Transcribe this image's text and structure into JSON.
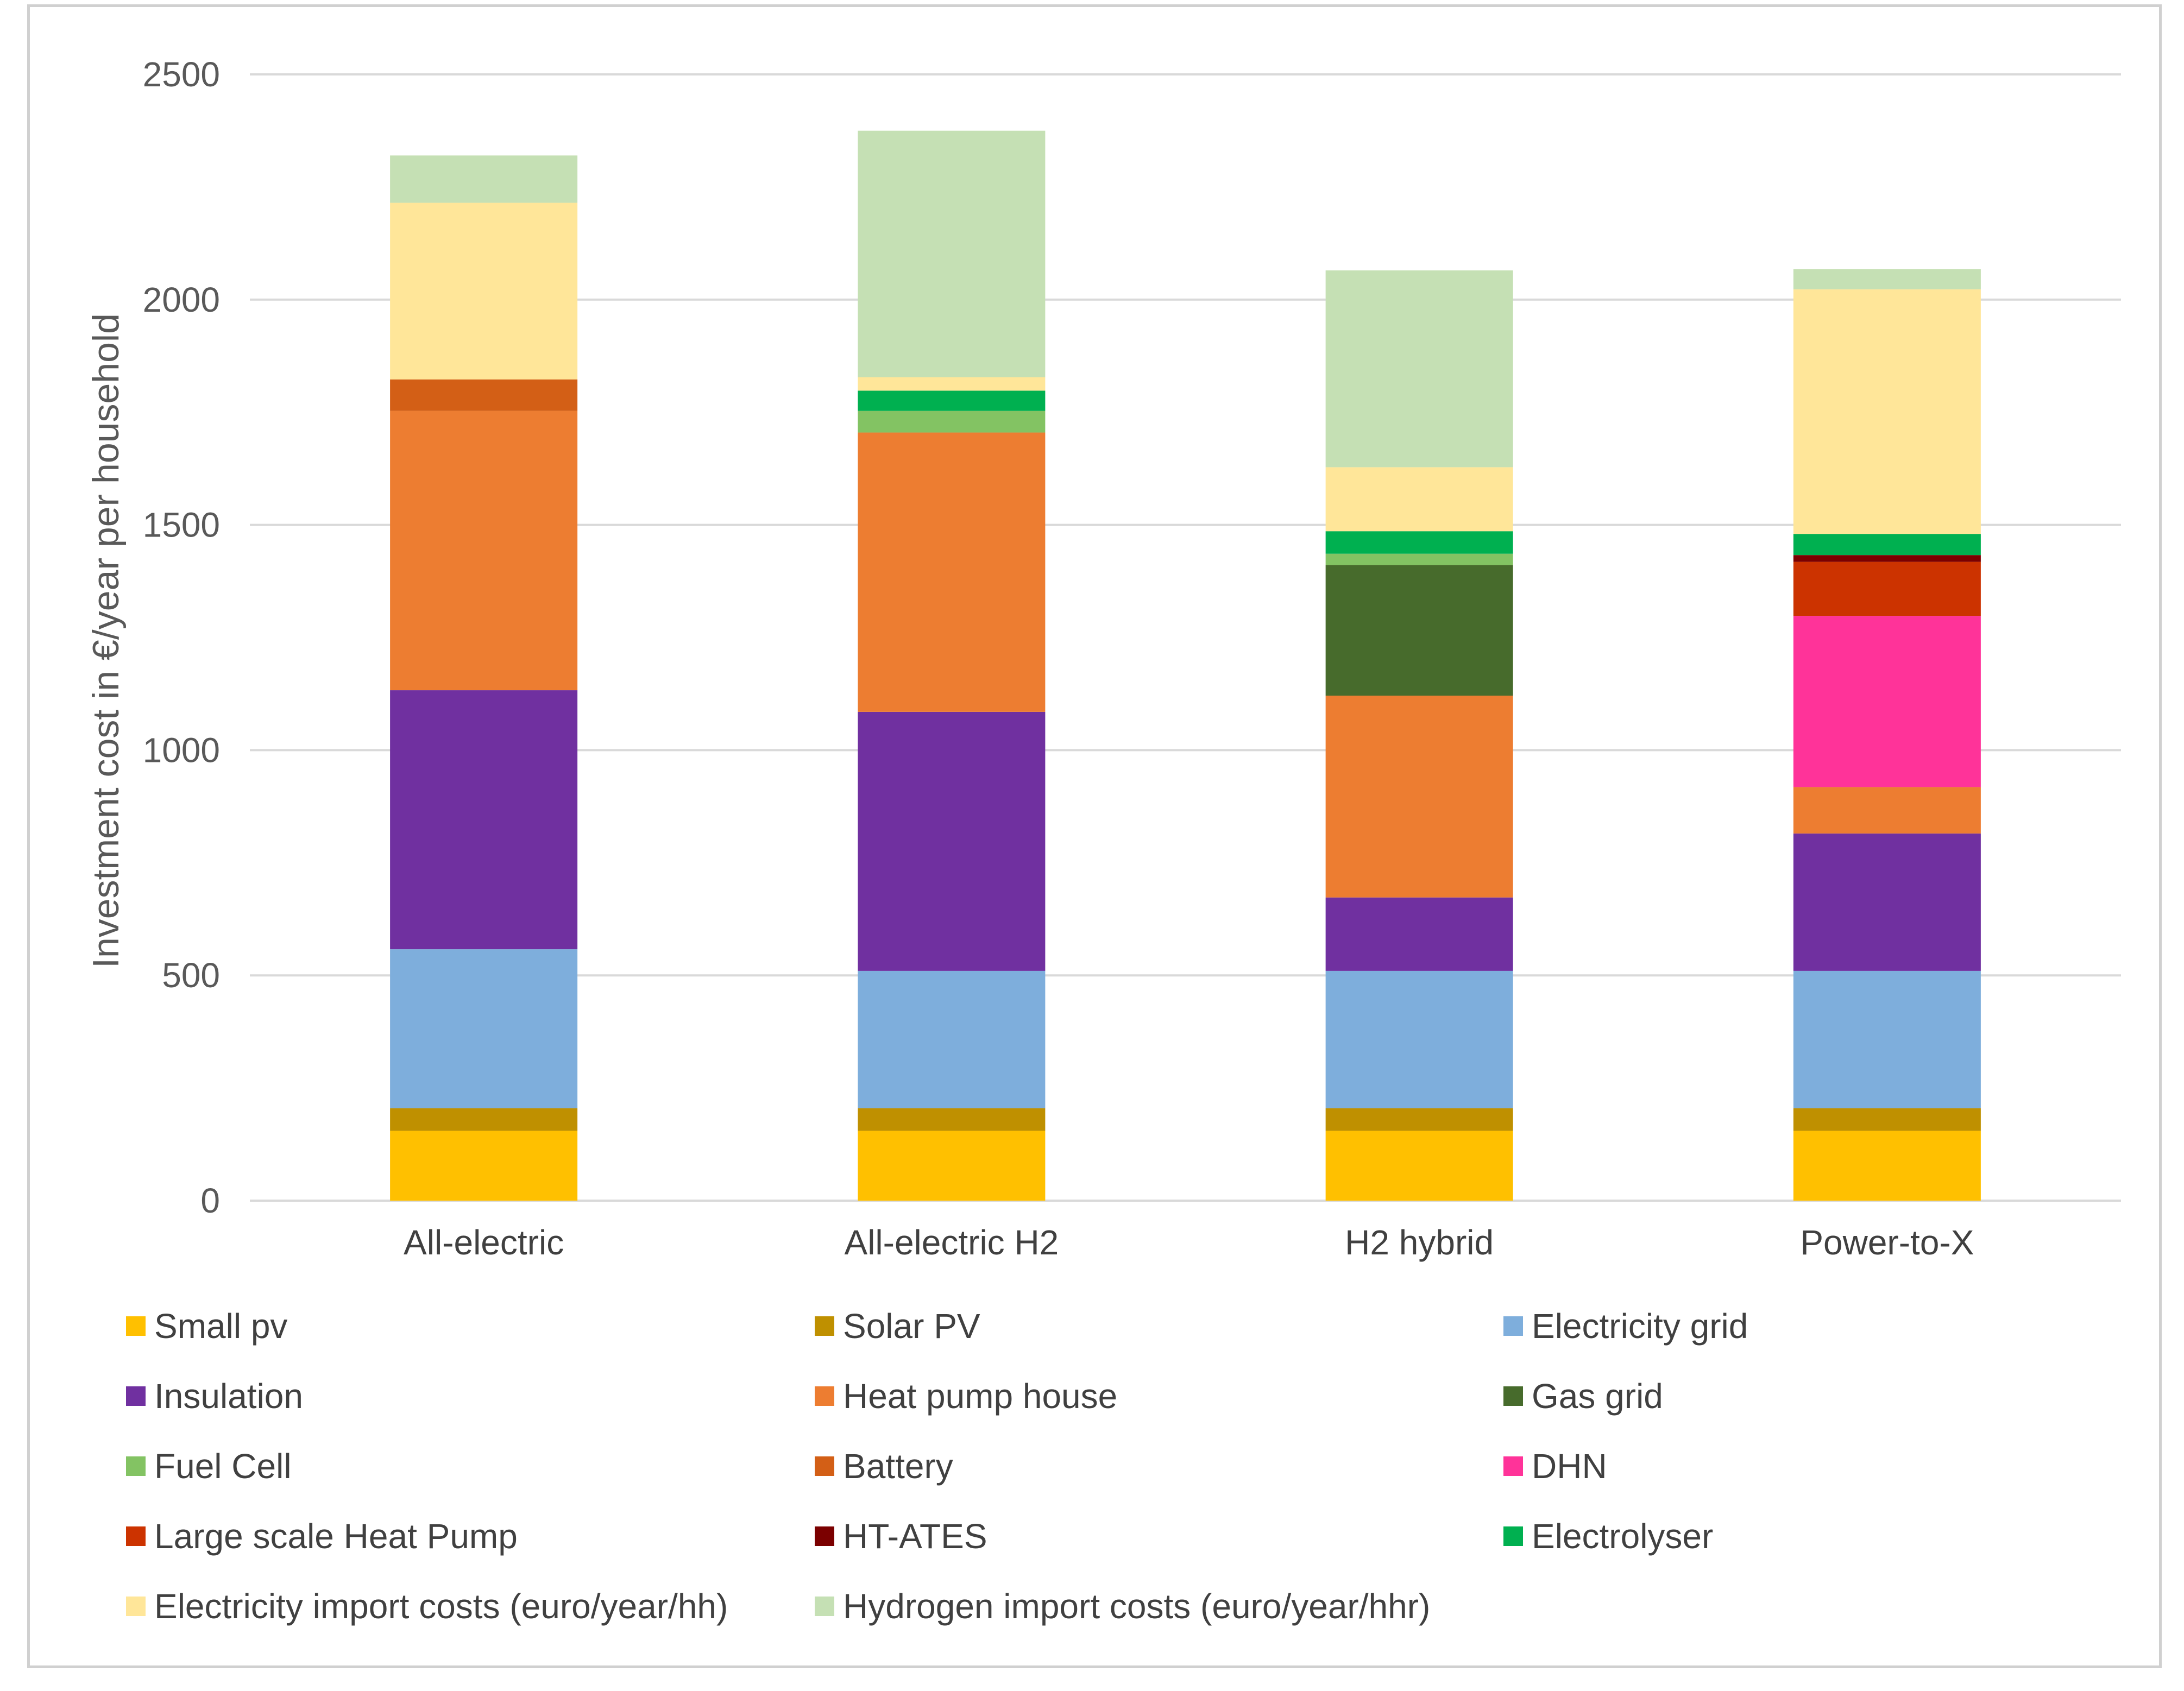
{
  "chart_data": {
    "type": "bar",
    "stacked": true,
    "ylabel": "Investment cost in €/year per household",
    "xlabel": "",
    "ylim": [
      0,
      2500
    ],
    "yticks": [
      "0",
      "500",
      "1000",
      "1500",
      "2000",
      "2500"
    ],
    "grid": true,
    "legend_position": "bottom",
    "categories": [
      "All-electric",
      "All-electric H2",
      "H2 hybrid",
      "Power-to-X"
    ],
    "series": [
      {
        "name": "Small pv",
        "color": "#FFC000",
        "values": [
          155,
          155,
          155,
          155
        ]
      },
      {
        "name": "Solar PV",
        "color": "#BF9000",
        "values": [
          50,
          50,
          50,
          50
        ]
      },
      {
        "name": "Electricity grid",
        "color": "#7EAEDC",
        "values": [
          353,
          305,
          305,
          305
        ]
      },
      {
        "name": "Insulation",
        "color": "#7030A0",
        "values": [
          575,
          575,
          163,
          305
        ]
      },
      {
        "name": "Heat pump house",
        "color": "#ED7D31",
        "values": [
          620,
          620,
          448,
          103
        ]
      },
      {
        "name": "Gas grid",
        "color": "#476B2C",
        "values": [
          0,
          0,
          290,
          0
        ]
      },
      {
        "name": "Fuel Cell",
        "color": "#83C363",
        "values": [
          0,
          48,
          25,
          0
        ]
      },
      {
        "name": "Battery",
        "color": "#D35F16",
        "values": [
          70,
          0,
          0,
          0
        ]
      },
      {
        "name": "DHN",
        "color": "#FF3399",
        "values": [
          0,
          0,
          0,
          380
        ]
      },
      {
        "name": "Large scale Heat Pump",
        "color": "#CC3300",
        "values": [
          0,
          0,
          0,
          120
        ]
      },
      {
        "name": "HT-ATES",
        "color": "#7B0000",
        "values": [
          0,
          0,
          0,
          15
        ]
      },
      {
        "name": "Electrolyser",
        "color": "#00B050",
        "values": [
          0,
          45,
          50,
          47
        ]
      },
      {
        "name": "Electricity import costs (euro/year/hh)",
        "color": "#FFE699",
        "values": [
          392,
          30,
          142,
          543
        ]
      },
      {
        "name": "Hydrogen import costs (euro/year/hhr)",
        "color": "#C5E0B4",
        "values": [
          105,
          547,
          437,
          45
        ]
      }
    ]
  }
}
